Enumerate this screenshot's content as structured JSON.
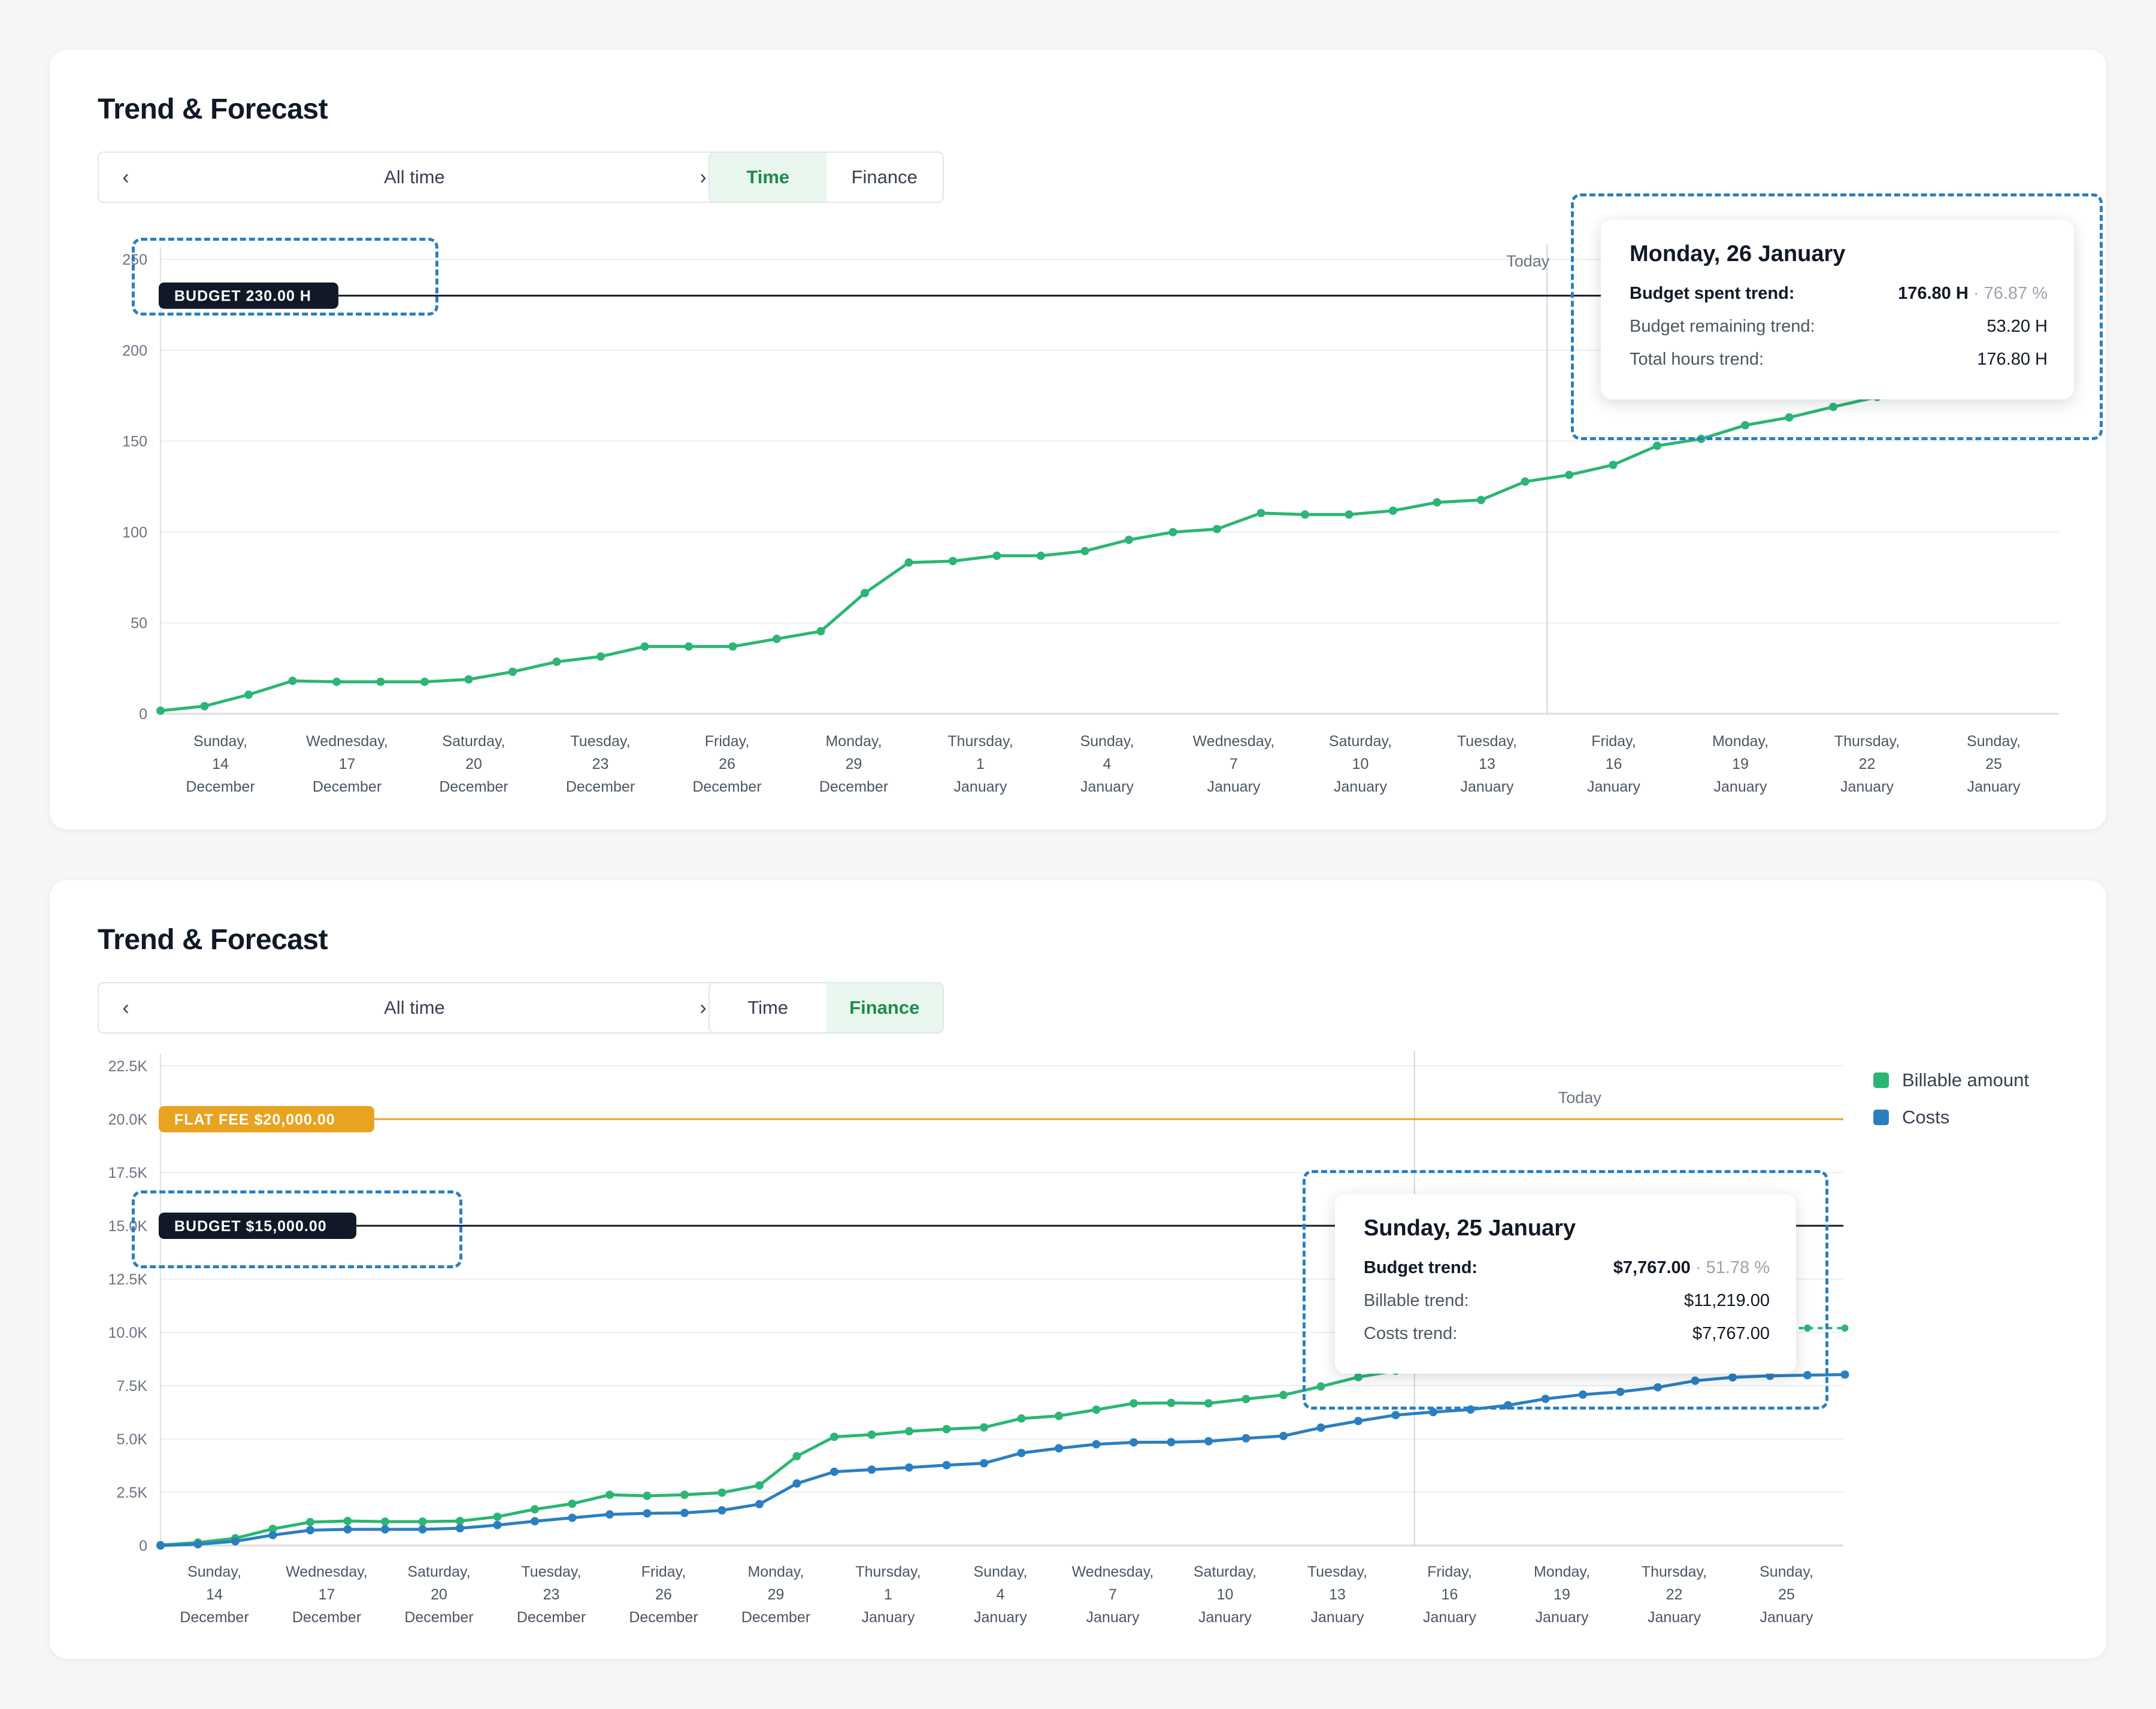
{
  "colors": {
    "green": "#2bb673",
    "blue": "#2b7fc0",
    "dark": "#111827",
    "orange": "#e8a321",
    "grid": "#eceef1",
    "highlight": "#2b7fc0"
  },
  "x_axis_labels": [
    [
      "Sunday,",
      "14",
      "December"
    ],
    [
      "Wednesday,",
      "17",
      "December"
    ],
    [
      "Saturday,",
      "20",
      "December"
    ],
    [
      "Tuesday,",
      "23",
      "December"
    ],
    [
      "Friday,",
      "26",
      "December"
    ],
    [
      "Monday,",
      "29",
      "December"
    ],
    [
      "Thursday,",
      "1",
      "January"
    ],
    [
      "Sunday,",
      "4",
      "January"
    ],
    [
      "Wednesday,",
      "7",
      "January"
    ],
    [
      "Saturday,",
      "10",
      "January"
    ],
    [
      "Tuesday,",
      "13",
      "January"
    ],
    [
      "Friday,",
      "16",
      "January"
    ],
    [
      "Monday,",
      "19",
      "January"
    ],
    [
      "Thursday,",
      "22",
      "January"
    ],
    [
      "Sunday,",
      "25",
      "January"
    ]
  ],
  "panel_time": {
    "title": "Trend & Forecast",
    "range_label": "All time",
    "tabs": [
      {
        "label": "Time",
        "active": true
      },
      {
        "label": "Finance",
        "active": false
      }
    ],
    "tooltip": {
      "title": "Monday, 26 January",
      "rows": [
        {
          "label": "Budget spent trend:",
          "value": "176.80 H",
          "pct": "· 76.87 %"
        },
        {
          "label": "Budget remaining trend:",
          "value": "53.20 H"
        },
        {
          "label": "Total hours trend:",
          "value": "176.80 H"
        }
      ]
    }
  },
  "panel_finance": {
    "title": "Trend & Forecast",
    "range_label": "All time",
    "tabs": [
      {
        "label": "Time",
        "active": false
      },
      {
        "label": "Finance",
        "active": true
      }
    ],
    "legend": [
      {
        "label": "Billable amount",
        "color": "#2bb673"
      },
      {
        "label": "Costs",
        "color": "#2b7fc0"
      }
    ],
    "tooltip": {
      "title": "Sunday, 25 January",
      "rows": [
        {
          "label": "Budget trend:",
          "value": "$7,767.00",
          "pct": "· 51.78 %"
        },
        {
          "label": "Billable trend:",
          "value": "$11,219.00"
        },
        {
          "label": "Costs trend:",
          "value": "$7,767.00"
        }
      ]
    }
  },
  "chart_data": [
    {
      "type": "line",
      "title": "Trend & Forecast",
      "y_ticks": [
        "0",
        "50",
        "100",
        "150",
        "200",
        "250"
      ],
      "ylim": [
        0,
        250
      ],
      "grid": true,
      "x_start": "2025-12-13",
      "budget_line": {
        "value": 230,
        "label": "BUDGET 230.00 H"
      },
      "today_label": "Today",
      "today_x": 31.5,
      "series": [
        {
          "color": "#2bb673",
          "points": [
            [
              0,
              1.7
            ],
            [
              1,
              4.2
            ],
            [
              2,
              10.5
            ],
            [
              3,
              18.1
            ],
            [
              4,
              17.6
            ],
            [
              5,
              17.6
            ],
            [
              6,
              17.6
            ],
            [
              7,
              18.9
            ],
            [
              8,
              23.1
            ],
            [
              9,
              28.6
            ],
            [
              10,
              31.5
            ],
            [
              11,
              37.0
            ],
            [
              12,
              37.0
            ],
            [
              13,
              37.0
            ],
            [
              14,
              41.2
            ],
            [
              15,
              45.4
            ],
            [
              16,
              66.4
            ],
            [
              17,
              83.2
            ],
            [
              18,
              84.0
            ],
            [
              19,
              86.9
            ],
            [
              20,
              86.9
            ],
            [
              21,
              89.5
            ],
            [
              22,
              95.7
            ],
            [
              23,
              99.9
            ],
            [
              24,
              101.6
            ],
            [
              25,
              110.4
            ],
            [
              26,
              109.6
            ],
            [
              27,
              109.6
            ],
            [
              28,
              111.7
            ],
            [
              29,
              116.3
            ],
            [
              30,
              117.6
            ],
            [
              31,
              127.7
            ],
            [
              32,
              131.4
            ],
            [
              33,
              136.9
            ],
            [
              34,
              147.4
            ],
            [
              35,
              151.2
            ],
            [
              36,
              158.7
            ],
            [
              37,
              163.0
            ],
            [
              38,
              168.8
            ],
            [
              39,
              174.3
            ]
          ]
        }
      ]
    },
    {
      "type": "line",
      "title": "Trend & Forecast",
      "y_ticks": [
        "0",
        "2.5K",
        "5.0K",
        "7.5K",
        "10.0K",
        "12.5K",
        "15.0K",
        "17.5K",
        "20.0K",
        "22.5K"
      ],
      "ylim": [
        0,
        22500
      ],
      "grid": true,
      "x_start": "2025-12-13",
      "budget_line": {
        "value": 15000,
        "label": "BUDGET $15,000.00"
      },
      "flat_fee_line": {
        "value": 20000,
        "label": "FLAT FEE $20,000.00"
      },
      "today_label": "Today",
      "today_x": 33.5,
      "series": [
        {
          "name": "Billable amount",
          "color": "#2bb673",
          "points": [
            [
              0,
              20
            ],
            [
              1,
              140
            ],
            [
              2,
              340
            ],
            [
              3,
              780
            ],
            [
              4,
              1100
            ],
            [
              5,
              1150
            ],
            [
              6,
              1120
            ],
            [
              7,
              1120
            ],
            [
              8,
              1150
            ],
            [
              9,
              1350
            ],
            [
              10,
              1700
            ],
            [
              11,
              1960
            ],
            [
              12,
              2380
            ],
            [
              13,
              2330
            ],
            [
              14,
              2380
            ],
            [
              15,
              2480
            ],
            [
              16,
              2820
            ],
            [
              17,
              4190
            ],
            [
              18,
              5100
            ],
            [
              19,
              5200
            ],
            [
              20,
              5360
            ],
            [
              21,
              5460
            ],
            [
              22,
              5540
            ],
            [
              23,
              5960
            ],
            [
              24,
              6080
            ],
            [
              25,
              6370
            ],
            [
              26,
              6670
            ],
            [
              27,
              6690
            ],
            [
              28,
              6670
            ],
            [
              29,
              6870
            ],
            [
              30,
              7060
            ],
            [
              31,
              7460
            ],
            [
              32,
              7900
            ],
            [
              33,
              8200
            ]
          ],
          "forecast_points": [
            [
              43,
              10200
            ],
            [
              44,
              10200
            ],
            [
              45,
              10200
            ]
          ]
        },
        {
          "name": "Costs",
          "color": "#2b7fc0",
          "points": [
            [
              0,
              0
            ],
            [
              1,
              60
            ],
            [
              2,
              200
            ],
            [
              3,
              490
            ],
            [
              4,
              720
            ],
            [
              5,
              760
            ],
            [
              6,
              760
            ],
            [
              7,
              760
            ],
            [
              8,
              810
            ],
            [
              9,
              960
            ],
            [
              10,
              1140
            ],
            [
              11,
              1300
            ],
            [
              12,
              1460
            ],
            [
              13,
              1510
            ],
            [
              14,
              1530
            ],
            [
              15,
              1650
            ],
            [
              16,
              1940
            ],
            [
              17,
              2910
            ],
            [
              18,
              3460
            ],
            [
              19,
              3560
            ],
            [
              20,
              3660
            ],
            [
              21,
              3770
            ],
            [
              22,
              3860
            ],
            [
              23,
              4340
            ],
            [
              24,
              4560
            ],
            [
              25,
              4750
            ],
            [
              26,
              4840
            ],
            [
              27,
              4850
            ],
            [
              28,
              4890
            ],
            [
              29,
              5030
            ],
            [
              30,
              5140
            ],
            [
              31,
              5530
            ],
            [
              32,
              5840
            ],
            [
              33,
              6120
            ],
            [
              34,
              6260
            ],
            [
              35,
              6380
            ],
            [
              36,
              6580
            ],
            [
              37,
              6880
            ],
            [
              38,
              7080
            ],
            [
              39,
              7210
            ],
            [
              40,
              7420
            ],
            [
              41,
              7730
            ],
            [
              42,
              7890
            ],
            [
              43,
              7960
            ],
            [
              44,
              7990
            ],
            [
              45,
              8020
            ]
          ]
        }
      ]
    }
  ]
}
